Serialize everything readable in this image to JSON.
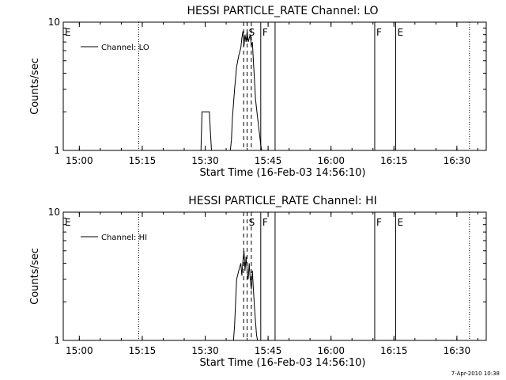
{
  "footer_date": "7-Apr-2010 10:38",
  "chart_data": [
    {
      "type": "line",
      "title": "HESSI PARTICLE_RATE Channel: LO",
      "xlabel": "Start Time (16-Feb-03 14:56:10)",
      "ylabel": "Counts/sec",
      "xlim": [
        "14:56:10",
        "16:37:00"
      ],
      "ylim": [
        1,
        10
      ],
      "yscale": "log",
      "x_ticks": [
        "15:00",
        "15:15",
        "15:30",
        "15:45",
        "16:00",
        "16:15",
        "16:30"
      ],
      "y_ticks": [
        "1",
        "10"
      ],
      "legend": {
        "position": "top-left",
        "entries": [
          "Channel: LO"
        ]
      },
      "series": [
        {
          "name": "Channel: LO",
          "x": [
            "15:28:45",
            "15:29:00",
            "15:29:15",
            "15:30:00",
            "15:31:00",
            "15:31:15",
            "15:31:30",
            "15:36:00",
            "15:36:15",
            "15:36:30",
            "15:37:00",
            "15:37:30",
            "15:38:00",
            "15:38:30",
            "15:38:45",
            "15:39:00",
            "15:39:15",
            "15:39:30",
            "15:39:45",
            "15:40:00",
            "15:40:15",
            "15:40:30",
            "15:40:45",
            "15:41:00",
            "15:41:15",
            "15:41:30",
            "15:41:45",
            "15:42:00",
            "15:42:30",
            "15:43:00",
            "15:43:15",
            "15:43:30"
          ],
          "y": [
            1,
            1,
            2,
            2,
            2,
            1.4,
            1,
            1,
            1.2,
            1.8,
            3,
            4.5,
            5.5,
            6.3,
            7.5,
            8.5,
            6.5,
            8,
            7,
            8.5,
            7,
            7.5,
            8,
            6.5,
            7,
            5,
            3.5,
            2.5,
            1.8,
            1.3,
            1.1,
            1
          ]
        }
      ],
      "event_lines": [
        {
          "time": "14:56:10",
          "label": "E",
          "style": "dotted"
        },
        {
          "time": "15:14:10",
          "label": "",
          "style": "dotted"
        },
        {
          "time": "15:39:10",
          "label": "",
          "style": "dashed"
        },
        {
          "time": "15:40:00",
          "label": "S",
          "style": "dashed"
        },
        {
          "time": "15:41:00",
          "label": "",
          "style": "dashed"
        },
        {
          "time": "15:43:15",
          "label": "F",
          "style": "solid"
        },
        {
          "time": "15:46:40",
          "label": "",
          "style": "solid"
        },
        {
          "time": "16:10:25",
          "label": "F",
          "style": "solid"
        },
        {
          "time": "16:15:25",
          "label": "E",
          "style": "solid"
        },
        {
          "time": "16:33:00",
          "label": "",
          "style": "dotted"
        }
      ]
    },
    {
      "type": "line",
      "title": "HESSI PARTICLE_RATE Channel: HI",
      "xlabel": "Start Time (16-Feb-03 14:56:10)",
      "ylabel": "Counts/sec",
      "xlim": [
        "14:56:10",
        "16:37:00"
      ],
      "ylim": [
        1,
        10
      ],
      "yscale": "log",
      "x_ticks": [
        "15:00",
        "15:15",
        "15:30",
        "15:45",
        "16:00",
        "16:15",
        "16:30"
      ],
      "y_ticks": [
        "1",
        "10"
      ],
      "legend": {
        "position": "top-left",
        "entries": [
          "Channel: HI"
        ]
      },
      "series": [
        {
          "name": "Channel: HI",
          "x": [
            "15:36:45",
            "15:37:00",
            "15:37:15",
            "15:37:30",
            "15:38:00",
            "15:38:30",
            "15:38:45",
            "15:39:00",
            "15:39:15",
            "15:39:30",
            "15:39:45",
            "15:40:00",
            "15:40:15",
            "15:40:30",
            "15:40:45",
            "15:41:00",
            "15:41:15",
            "15:41:30",
            "15:41:45",
            "15:42:00",
            "15:42:15",
            "15:42:30"
          ],
          "y": [
            1,
            1.3,
            2,
            3,
            3.5,
            4,
            3.2,
            4.2,
            5,
            3.5,
            4.5,
            3.5,
            3,
            4,
            3,
            2.5,
            3.5,
            2.5,
            1.8,
            1.4,
            1.1,
            1
          ]
        }
      ],
      "event_lines": [
        {
          "time": "14:56:10",
          "label": "E",
          "style": "dotted"
        },
        {
          "time": "15:14:10",
          "label": "",
          "style": "dotted"
        },
        {
          "time": "15:39:10",
          "label": "",
          "style": "dashed"
        },
        {
          "time": "15:40:00",
          "label": "S",
          "style": "dashed"
        },
        {
          "time": "15:41:00",
          "label": "",
          "style": "dashed"
        },
        {
          "time": "15:43:15",
          "label": "F",
          "style": "solid"
        },
        {
          "time": "15:46:40",
          "label": "",
          "style": "solid"
        },
        {
          "time": "16:10:25",
          "label": "F",
          "style": "solid"
        },
        {
          "time": "16:15:25",
          "label": "E",
          "style": "solid"
        },
        {
          "time": "16:33:00",
          "label": "",
          "style": "dotted"
        }
      ]
    }
  ]
}
